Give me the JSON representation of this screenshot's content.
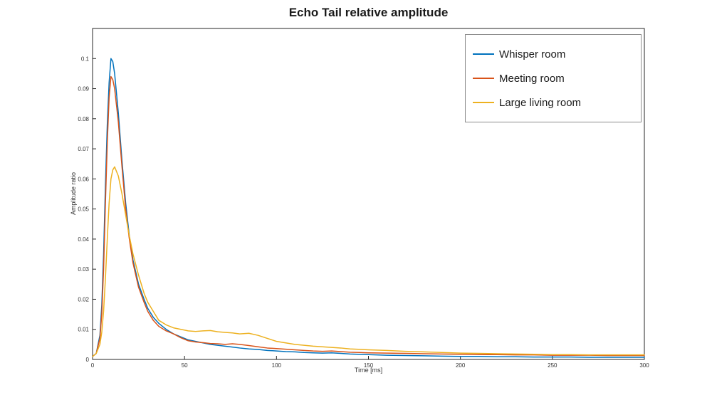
{
  "title": "Echo Tail relative amplitude",
  "chart_data": {
    "type": "line",
    "title": "Echo Tail relative amplitude",
    "xlabel": "Time [ms]",
    "ylabel": "Amplitude ratio",
    "xlim": [
      0,
      300
    ],
    "ylim": [
      0,
      0.11
    ],
    "xticks": [
      0,
      50,
      100,
      150,
      200,
      250,
      300
    ],
    "xtick_labels": [
      "0",
      "50",
      "100",
      "150",
      "200",
      "250",
      "300"
    ],
    "yticks": [
      0,
      0.01,
      0.02,
      0.03,
      0.04,
      0.05,
      0.06,
      0.07,
      0.08,
      0.09,
      0.1
    ],
    "ytick_labels": [
      "0",
      "0.01",
      "0.02",
      "0.03",
      "0.04",
      "0.05",
      "0.06",
      "0.07",
      "0.08",
      "0.09",
      "0.1"
    ],
    "grid": false,
    "legend_position": "top-right",
    "x": [
      0,
      2,
      4,
      5,
      6,
      7,
      8,
      9,
      10,
      11,
      12,
      14,
      16,
      18,
      20,
      22,
      25,
      28,
      30,
      33,
      36,
      40,
      44,
      48,
      52,
      56,
      60,
      64,
      68,
      72,
      76,
      80,
      85,
      90,
      95,
      100,
      105,
      110,
      115,
      120,
      125,
      130,
      135,
      140,
      150,
      160,
      170,
      180,
      190,
      200,
      210,
      220,
      230,
      240,
      250,
      260,
      270,
      280,
      290,
      300
    ],
    "series": [
      {
        "name": "Whisper room",
        "color": "#0072BD",
        "values": [
          0.001,
          0.002,
          0.008,
          0.018,
          0.035,
          0.058,
          0.078,
          0.092,
          0.1,
          0.099,
          0.095,
          0.082,
          0.066,
          0.052,
          0.041,
          0.033,
          0.025,
          0.02,
          0.017,
          0.014,
          0.012,
          0.01,
          0.0085,
          0.0075,
          0.0065,
          0.006,
          0.0055,
          0.005,
          0.0047,
          0.0044,
          0.0041,
          0.0038,
          0.0035,
          0.0033,
          0.003,
          0.0028,
          0.0026,
          0.0025,
          0.0023,
          0.0022,
          0.0021,
          0.0022,
          0.002,
          0.0018,
          0.0016,
          0.0014,
          0.0013,
          0.0012,
          0.0011,
          0.001,
          0.001,
          0.0009,
          0.0009,
          0.0008,
          0.0008,
          0.0008,
          0.0007,
          0.0007,
          0.0007,
          0.0007
        ]
      },
      {
        "name": "Meeting room",
        "color": "#D95319",
        "values": [
          0.001,
          0.002,
          0.007,
          0.015,
          0.03,
          0.052,
          0.072,
          0.087,
          0.094,
          0.093,
          0.09,
          0.079,
          0.064,
          0.05,
          0.04,
          0.032,
          0.024,
          0.019,
          0.016,
          0.013,
          0.011,
          0.0095,
          0.0085,
          0.0072,
          0.0062,
          0.0058,
          0.0056,
          0.0053,
          0.0052,
          0.005,
          0.0052,
          0.005,
          0.0046,
          0.0042,
          0.0038,
          0.0036,
          0.0034,
          0.0032,
          0.003,
          0.0028,
          0.0027,
          0.0028,
          0.0026,
          0.0024,
          0.0022,
          0.0021,
          0.002,
          0.0019,
          0.0018,
          0.0017,
          0.0016,
          0.0016,
          0.0015,
          0.0015,
          0.0014,
          0.0014,
          0.0014,
          0.0013,
          0.0013,
          0.0013
        ]
      },
      {
        "name": "Large living room",
        "color": "#EDB120",
        "values": [
          0.001,
          0.002,
          0.005,
          0.009,
          0.016,
          0.027,
          0.04,
          0.052,
          0.06,
          0.063,
          0.064,
          0.061,
          0.055,
          0.048,
          0.041,
          0.035,
          0.028,
          0.022,
          0.019,
          0.016,
          0.013,
          0.0115,
          0.0105,
          0.01,
          0.0095,
          0.0093,
          0.0095,
          0.0096,
          0.0092,
          0.009,
          0.0088,
          0.0085,
          0.0087,
          0.008,
          0.007,
          0.006,
          0.0055,
          0.005,
          0.0047,
          0.0044,
          0.0042,
          0.004,
          0.0038,
          0.0035,
          0.0032,
          0.003,
          0.0027,
          0.0025,
          0.0023,
          0.0021,
          0.002,
          0.0019,
          0.0018,
          0.0017,
          0.0016,
          0.0016,
          0.0015,
          0.0015,
          0.0015,
          0.0015
        ]
      }
    ]
  }
}
